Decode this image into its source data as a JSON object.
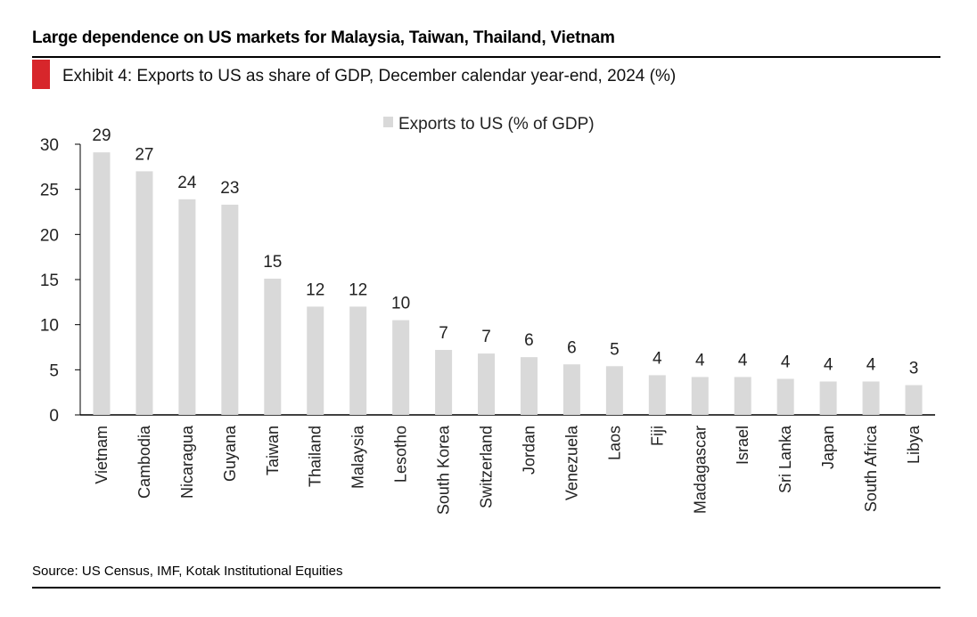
{
  "headline": "Large dependence on US markets for Malaysia, Taiwan, Thailand, Vietnam",
  "exhibit_title": "Exhibit 4: Exports to US as share of GDP, December calendar year-end, 2024 (%)",
  "source": "Source: US Census, IMF, Kotak Institutional Equities",
  "colors": {
    "accent": "#d7262b",
    "bar": "#d9d9d9",
    "axis": "#000000"
  },
  "chart_data": {
    "type": "bar",
    "title": "",
    "xlabel": "",
    "ylabel": "",
    "ylim": [
      0,
      30
    ],
    "yticks": [
      0,
      5,
      10,
      15,
      20,
      25,
      30
    ],
    "grid": false,
    "legend_position": "top-center",
    "categories": [
      "Vietnam",
      "Cambodia",
      "Nicaragua",
      "Guyana",
      "Taiwan",
      "Thailand",
      "Malaysia",
      "Lesotho",
      "South Korea",
      "Switzerland",
      "Jordan",
      "Venezuela",
      "Laos",
      "Fiji",
      "Madagascar",
      "Israel",
      "Sri Lanka",
      "Japan",
      "South Africa",
      "Libya"
    ],
    "series": [
      {
        "name": "Exports to US (% of GDP)",
        "values": [
          29.1,
          27.0,
          23.9,
          23.3,
          15.1,
          12.0,
          12.0,
          10.5,
          7.2,
          6.8,
          6.4,
          5.6,
          5.4,
          4.4,
          4.2,
          4.2,
          4.0,
          3.7,
          3.7,
          3.3
        ],
        "data_labels": [
          "29",
          "27",
          "24",
          "23",
          "15",
          "12",
          "12",
          "10",
          "7",
          "7",
          "6",
          "6",
          "5",
          "4",
          "4",
          "4",
          "4",
          "4",
          "4",
          "3"
        ]
      }
    ]
  }
}
